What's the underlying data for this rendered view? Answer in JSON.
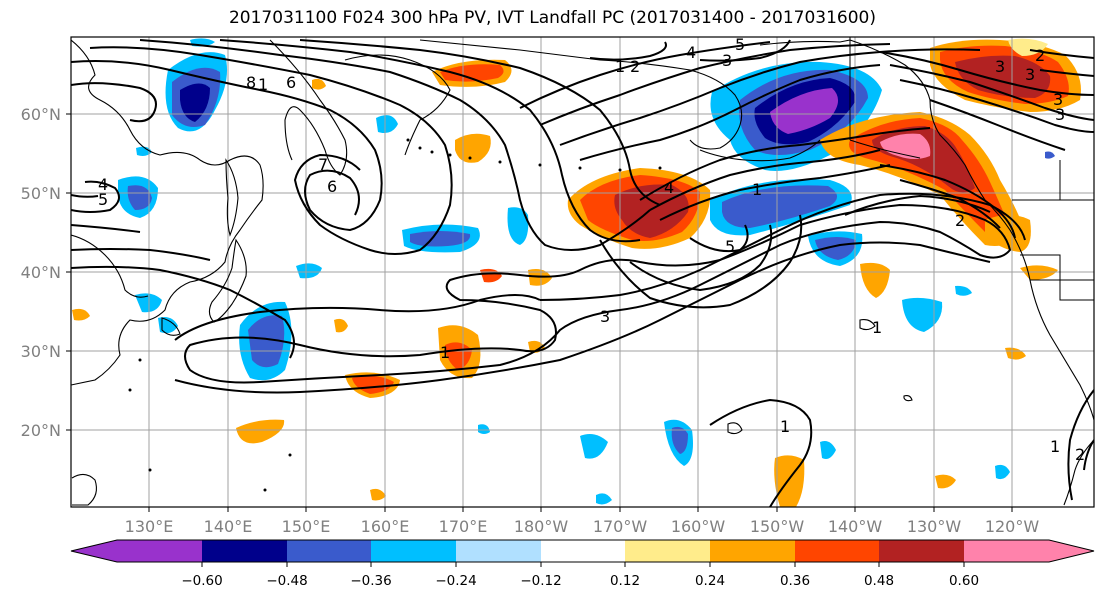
{
  "title": "2017031100 F024 300 hPa PV, IVT Landfall PC (2017031400 - 2017031600)",
  "lon_labels": [
    "130°E",
    "140°E",
    "150°E",
    "160°E",
    "170°E",
    "180°W",
    "170°W",
    "160°W",
    "150°W",
    "140°W",
    "130°W",
    "120°W"
  ],
  "lat_labels": [
    "60°N",
    "50°N",
    "40°N",
    "30°N",
    "20°N"
  ],
  "colorbar": {
    "tick_labels": [
      "−0.60",
      "−0.48",
      "−0.36",
      "−0.24",
      "−0.12",
      "0.12",
      "0.24",
      "0.36",
      "0.48",
      "0.60"
    ],
    "colors": [
      "#9932cc",
      "#00008b",
      "#3a5bcc",
      "#00bfff",
      "#b0e0ff",
      "#ffffff",
      "#ffec8b",
      "#ffa500",
      "#ff4500",
      "#b22222",
      "#ff82ab"
    ]
  },
  "contour_labels": [
    "1",
    "2",
    "3",
    "4",
    "5",
    "6",
    "7",
    "8",
    "1",
    "3",
    "5",
    "4",
    "2",
    "1",
    "1",
    "2",
    "3",
    "5",
    "3",
    "1",
    "6",
    "4",
    "3",
    "2",
    "1",
    "3",
    "1"
  ]
}
